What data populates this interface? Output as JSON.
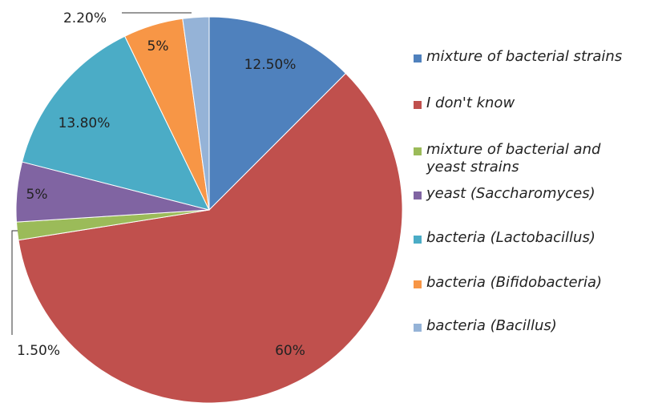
{
  "chart_data": {
    "type": "pie",
    "start_angle_deg": 0,
    "direction": "clockwise",
    "legend_position": "right",
    "slices": [
      {
        "name": "mixture of bacterial strains",
        "value": 12.5,
        "label": "12.50%",
        "color": "#4F81BD"
      },
      {
        "name": "I don't know",
        "value": 60,
        "label": "60%",
        "color": "#C0504D"
      },
      {
        "name": "mixture of bacterial and yeast strains",
        "value": 1.5,
        "label": "1.50%",
        "color": "#9BBB59"
      },
      {
        "name": "yeast (Saccharomyces)",
        "value": 5,
        "label": "5%",
        "color": "#8064A2"
      },
      {
        "name": "bacteria (Lactobacillus)",
        "value": 13.8,
        "label": "13.80%",
        "color": "#4BACC6"
      },
      {
        "name": "bacteria (Bifidobacteria)",
        "value": 5,
        "label": "5%",
        "color": "#F79646"
      },
      {
        "name": "bacteria (Bacillus)",
        "value": 2.2,
        "label": "2.20%",
        "color": "#95B3D7"
      }
    ]
  }
}
